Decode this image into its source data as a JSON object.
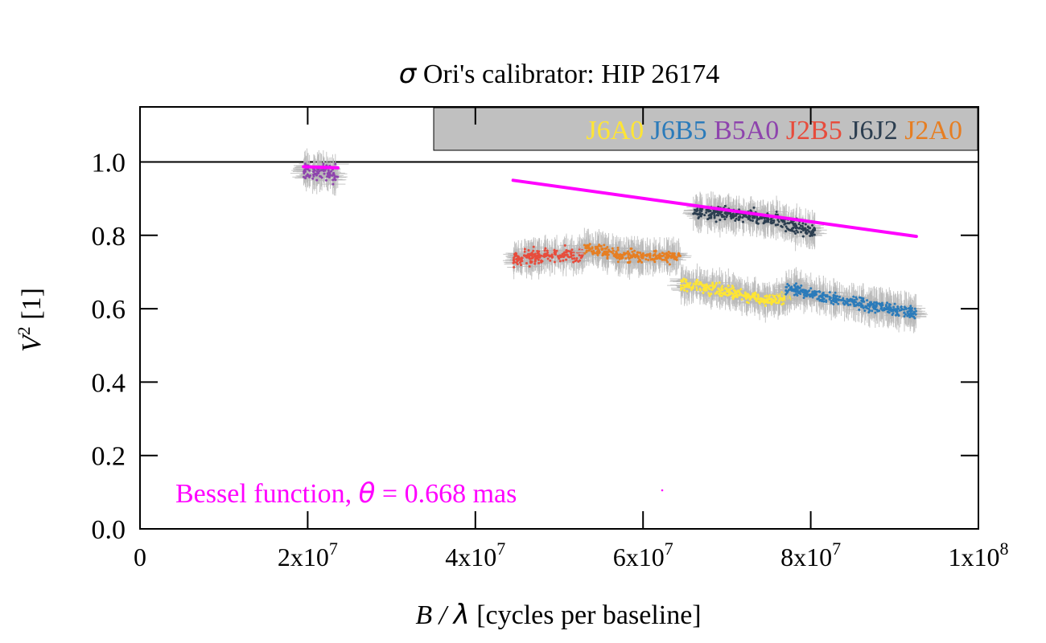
{
  "chart_data": {
    "type": "scatter",
    "title_prefix": "σ",
    "title_rest": " Ori's calibrator: HIP 26174",
    "xlabel_B": "B",
    "xlabel_slash": " / ",
    "xlabel_lambda": "λ",
    "xlabel_rest": " [cycles per baseline]",
    "ylabel_V": "V",
    "ylabel_exp": "2",
    "ylabel_rest": " [1]",
    "xlim": [
      0,
      100000000
    ],
    "ylim": [
      0.0,
      1.15
    ],
    "yticks": [
      {
        "value": 0.0,
        "label": "0.0"
      },
      {
        "value": 0.2,
        "label": "0.2"
      },
      {
        "value": 0.4,
        "label": "0.4"
      },
      {
        "value": 0.6,
        "label": "0.6"
      },
      {
        "value": 0.8,
        "label": "0.8"
      },
      {
        "value": 1.0,
        "label": "1.0"
      }
    ],
    "xticks": [
      {
        "value": 0,
        "base": "0",
        "exp": ""
      },
      {
        "value": 20000000,
        "base": "2x10",
        "exp": "7"
      },
      {
        "value": 40000000,
        "base": "4x10",
        "exp": "7"
      },
      {
        "value": 60000000,
        "base": "6x10",
        "exp": "7"
      },
      {
        "value": 80000000,
        "base": "8x10",
        "exp": "7"
      },
      {
        "value": 100000000,
        "base": "1x10",
        "exp": "8"
      }
    ],
    "reference_line": 1.0,
    "legend": {
      "placement": "top-right",
      "background": "#c0c0c0"
    },
    "error_bar_color": "#b8b8b8",
    "series": [
      {
        "name": "J6A0",
        "color": "#ffe535",
        "segments": [
          {
            "x": [
              64500000,
              70000000,
              75000000,
              77700000
            ],
            "y": [
              0.67,
              0.645,
              0.625,
              0.635
            ],
            "spread": 0.016
          }
        ]
      },
      {
        "name": "J6B5",
        "color": "#2b7bba",
        "segments": [
          {
            "x": [
              77000000,
              82000000,
              87000000,
              92600000
            ],
            "y": [
              0.655,
              0.63,
              0.61,
              0.585
            ],
            "spread": 0.015
          }
        ]
      },
      {
        "name": "B5A0",
        "color": "#8e44ad",
        "segments": [
          {
            "x": [
              19500000,
              21500000,
              23600000
            ],
            "y": [
              0.97,
              0.975,
              0.965
            ],
            "spread": 0.022
          }
        ]
      },
      {
        "name": "J2B5",
        "color": "#e74c3c",
        "segments": [
          {
            "x": [
              44500000,
              48500000,
              53000000
            ],
            "y": [
              0.735,
              0.745,
              0.748
            ],
            "spread": 0.018
          }
        ]
      },
      {
        "name": "J6J2",
        "color": "#2c3e50",
        "segments": [
          {
            "x": [
              66000000,
              70000000,
              75000000,
              80500000
            ],
            "y": [
              0.86,
              0.86,
              0.845,
              0.81
            ],
            "spread": 0.017
          }
        ]
      },
      {
        "name": "J2A0",
        "color": "#e67e22",
        "segments": [
          {
            "x": [
              53000000,
              58000000,
              64500000
            ],
            "y": [
              0.765,
              0.745,
              0.74
            ],
            "spread": 0.016
          }
        ]
      }
    ],
    "model": {
      "label_prefix": "Bessel function, ",
      "label_theta": "θ",
      "label_suffix": " = 0.668 mas",
      "color": "#ff00ff",
      "segments": [
        {
          "x": [
            19500000,
            23600000
          ],
          "y": [
            0.987,
            0.984
          ]
        },
        {
          "x": [
            44500000,
            92600000
          ],
          "y": [
            0.95,
            0.797
          ]
        }
      ]
    }
  }
}
